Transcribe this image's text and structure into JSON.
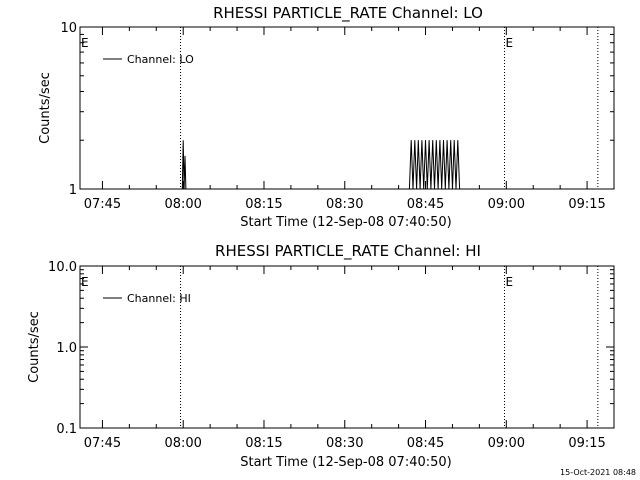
{
  "footer": {
    "timestamp": "15-Oct-2021 08:48"
  },
  "colors": {
    "background": "#ffffff",
    "ink": "#000000"
  },
  "chart_data": [
    {
      "type": "line",
      "title": "RHESSI PARTICLE_RATE Channel: LO",
      "xlabel": "Start Time (12-Sep-08 07:40:50)",
      "ylabel": "Counts/sec",
      "xscale": "time",
      "yscale": "log",
      "xlim": [
        "07:40:50",
        "09:20:00"
      ],
      "ylim": [
        1,
        10
      ],
      "x_ticks": [
        "07:45",
        "08:00",
        "08:15",
        "08:30",
        "08:45",
        "09:00",
        "09:15"
      ],
      "y_ticks": [
        {
          "value": 1,
          "label": "1"
        },
        {
          "value": 10,
          "label": "10"
        }
      ],
      "legend": {
        "position": "top-left",
        "entries": [
          "Channel: LO"
        ]
      },
      "markers": [
        {
          "time": "07:59:30",
          "label": "E",
          "style": "dotted"
        },
        {
          "time": "08:59:40",
          "label": "E",
          "style": "dotted"
        },
        {
          "time": "09:17:00",
          "label": "",
          "style": "dotted"
        }
      ],
      "series": [
        {
          "name": "Channel: LO",
          "points": [
            [
              "07:59:40",
              1
            ],
            [
              "07:59:50",
              1
            ],
            [
              "08:00:00",
              2
            ],
            [
              "08:00:10",
              1
            ],
            [
              "08:00:20",
              1.6
            ],
            [
              "08:00:30",
              1
            ],
            [
              "08:42:00",
              1
            ],
            [
              "08:42:20",
              2
            ],
            [
              "08:42:40",
              1
            ],
            [
              "08:43:00",
              2
            ],
            [
              "08:43:20",
              1
            ],
            [
              "08:43:40",
              2
            ],
            [
              "08:44:00",
              1
            ],
            [
              "08:44:20",
              2
            ],
            [
              "08:44:40",
              1
            ],
            [
              "08:45:00",
              2
            ],
            [
              "08:45:20",
              1
            ],
            [
              "08:45:40",
              2
            ],
            [
              "08:46:00",
              1
            ],
            [
              "08:46:20",
              2
            ],
            [
              "08:46:40",
              1
            ],
            [
              "08:47:00",
              2
            ],
            [
              "08:47:20",
              1
            ],
            [
              "08:47:40",
              2
            ],
            [
              "08:48:00",
              1
            ],
            [
              "08:48:20",
              2
            ],
            [
              "08:48:40",
              1
            ],
            [
              "08:49:00",
              2
            ],
            [
              "08:49:20",
              1
            ],
            [
              "08:49:40",
              2
            ],
            [
              "08:50:00",
              1
            ],
            [
              "08:50:20",
              2
            ],
            [
              "08:50:40",
              1
            ],
            [
              "08:51:00",
              2
            ],
            [
              "08:51:20",
              1
            ]
          ]
        }
      ]
    },
    {
      "type": "line",
      "title": "RHESSI PARTICLE_RATE Channel: HI",
      "xlabel": "Start Time (12-Sep-08 07:40:50)",
      "ylabel": "Counts/sec",
      "xscale": "time",
      "yscale": "log",
      "xlim": [
        "07:40:50",
        "09:20:00"
      ],
      "ylim": [
        0.1,
        10
      ],
      "x_ticks": [
        "07:45",
        "08:00",
        "08:15",
        "08:30",
        "08:45",
        "09:00",
        "09:15"
      ],
      "y_ticks": [
        {
          "value": 0.1,
          "label": "0.1"
        },
        {
          "value": 1,
          "label": "1.0"
        },
        {
          "value": 10,
          "label": "10.0"
        }
      ],
      "legend": {
        "position": "top-left",
        "entries": [
          "Channel: HI"
        ]
      },
      "markers": [
        {
          "time": "07:59:30",
          "label": "E",
          "style": "dotted"
        },
        {
          "time": "08:59:40",
          "label": "E",
          "style": "dotted"
        },
        {
          "time": "09:17:00",
          "label": "",
          "style": "dotted"
        }
      ],
      "series": [
        {
          "name": "Channel: HI",
          "points": []
        }
      ]
    }
  ]
}
